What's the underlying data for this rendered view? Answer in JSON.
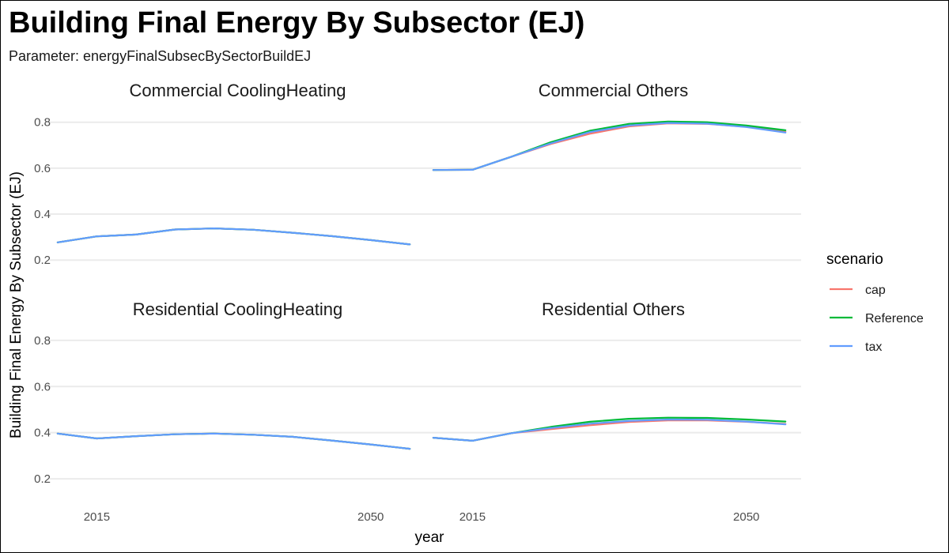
{
  "title": "Building Final Energy By Subsector (EJ)",
  "subtitle": "Parameter: energyFinalSubsecBySectorBuildEJ",
  "chart_data": {
    "type": "line",
    "title": "Building Final Energy By Subsector (EJ)",
    "subtitle": "Parameter: energyFinalSubsecBySectorBuildEJ",
    "xlabel": "year",
    "ylabel": "Building Final Energy By Subsector (EJ)",
    "x": [
      2010,
      2015,
      2020,
      2025,
      2030,
      2035,
      2040,
      2045,
      2050,
      2055
    ],
    "xlim": [
      2009,
      2057
    ],
    "x_ticks": [
      2015,
      2050
    ],
    "ylim": [
      0.125,
      0.885
    ],
    "y_ticks": [
      0.2,
      0.4,
      0.6,
      0.8
    ],
    "grid": true,
    "legend": {
      "title": "scenario",
      "position": "right",
      "entries": [
        "cap",
        "Reference",
        "tax"
      ]
    },
    "colors": {
      "cap": "#F8766D",
      "Reference": "#00BA38",
      "tax": "#619CFF"
    },
    "panels": [
      {
        "title": "Commercial CoolingHeating",
        "series": [
          {
            "name": "cap",
            "values": [
              0.277,
              0.303,
              0.311,
              0.333,
              0.338,
              0.332,
              0.319,
              0.304,
              0.287,
              0.268
            ]
          },
          {
            "name": "Reference",
            "values": [
              0.277,
              0.303,
              0.311,
              0.333,
              0.338,
              0.332,
              0.319,
              0.304,
              0.287,
              0.268
            ]
          },
          {
            "name": "tax",
            "values": [
              0.277,
              0.303,
              0.311,
              0.333,
              0.338,
              0.332,
              0.319,
              0.304,
              0.287,
              0.268
            ]
          }
        ]
      },
      {
        "title": "Commercial Others",
        "series": [
          {
            "name": "cap",
            "values": [
              0.592,
              0.593,
              0.65,
              0.705,
              0.75,
              0.782,
              0.795,
              0.793,
              0.78,
              0.758
            ]
          },
          {
            "name": "Reference",
            "values": [
              0.592,
              0.593,
              0.65,
              0.713,
              0.763,
              0.793,
              0.803,
              0.8,
              0.786,
              0.765
            ]
          },
          {
            "name": "tax",
            "values": [
              0.592,
              0.593,
              0.65,
              0.708,
              0.757,
              0.786,
              0.797,
              0.794,
              0.779,
              0.755
            ]
          }
        ]
      },
      {
        "title": "Residential CoolingHeating",
        "series": [
          {
            "name": "cap",
            "values": [
              0.396,
              0.375,
              0.385,
              0.393,
              0.396,
              0.391,
              0.382,
              0.366,
              0.349,
              0.33
            ]
          },
          {
            "name": "Reference",
            "values": [
              0.396,
              0.375,
              0.385,
              0.393,
              0.396,
              0.391,
              0.382,
              0.366,
              0.349,
              0.33
            ]
          },
          {
            "name": "tax",
            "values": [
              0.396,
              0.375,
              0.385,
              0.393,
              0.396,
              0.391,
              0.382,
              0.366,
              0.349,
              0.33
            ]
          }
        ]
      },
      {
        "title": "Residential Others",
        "series": [
          {
            "name": "cap",
            "values": [
              0.378,
              0.365,
              0.398,
              0.415,
              0.432,
              0.446,
              0.453,
              0.453,
              0.447,
              0.438
            ]
          },
          {
            "name": "Reference",
            "values": [
              0.378,
              0.365,
              0.398,
              0.425,
              0.447,
              0.46,
              0.465,
              0.464,
              0.457,
              0.448
            ]
          },
          {
            "name": "tax",
            "values": [
              0.378,
              0.365,
              0.398,
              0.42,
              0.439,
              0.451,
              0.457,
              0.456,
              0.448,
              0.436
            ]
          }
        ]
      }
    ]
  }
}
